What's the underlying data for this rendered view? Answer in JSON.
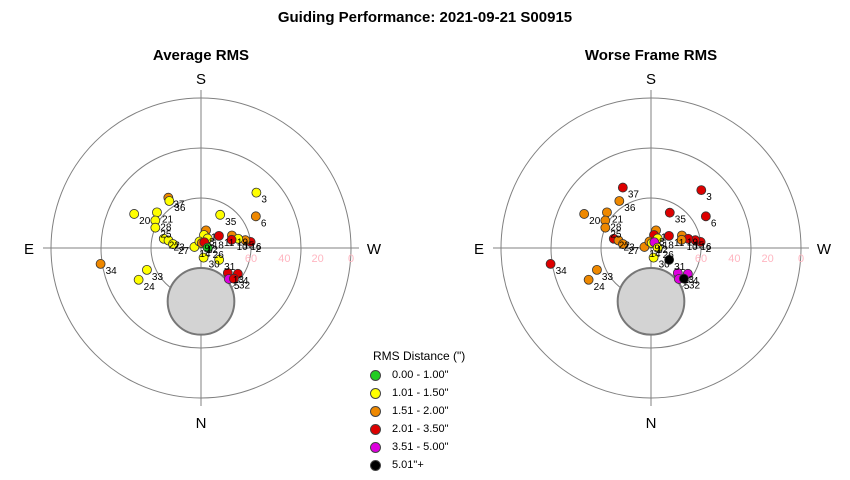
{
  "title": "Guiding Performance: 2021-09-21 S00915",
  "cardinals": {
    "top": "S",
    "bottom": "N",
    "left": "E",
    "right": "W"
  },
  "ring_labels": [
    "60",
    "40",
    "20",
    "0"
  ],
  "colors": {
    "c0": "#22cc22",
    "c1": "#ffff00",
    "c2": "#ee8800",
    "c3": "#dd0000",
    "c4": "#dd00dd",
    "c5": "#000000",
    "moon": "#d3d3d3",
    "grid": "#808080"
  },
  "legend": {
    "title": "RMS Distance (\")",
    "items": [
      {
        "label": "0.00 - 1.00\"",
        "color": "c0"
      },
      {
        "label": "1.01 - 1.50\"",
        "color": "c1"
      },
      {
        "label": "1.51 - 2.00\"",
        "color": "c2"
      },
      {
        "label": "2.01 - 3.50\"",
        "color": "c3"
      },
      {
        "label": "3.51 - 5.00\"",
        "color": "c4"
      },
      {
        "label": "5.01\"+",
        "color": "c5"
      }
    ]
  },
  "chart_data": [
    {
      "type": "scatter",
      "title": "Average RMS",
      "radial_axis": "altitude",
      "radial_range": [
        90,
        0
      ],
      "ring_ticks": [
        60,
        40,
        20,
        0
      ],
      "moon": {
        "azimuth": 0,
        "altitude": 58,
        "radius_deg": 20
      },
      "points": [
        {
          "label": "37",
          "az": 147,
          "alt": 54,
          "color": "c2"
        },
        {
          "label": "36",
          "az": 146,
          "alt": 56,
          "color": "c1"
        },
        {
          "label": "35",
          "az": 210,
          "alt": 67,
          "color": "c1"
        },
        {
          "label": "3",
          "az": 225,
          "alt": 43,
          "color": "c1"
        },
        {
          "label": "21",
          "az": 129,
          "alt": 56,
          "color": "c1"
        },
        {
          "label": "20",
          "az": 117,
          "alt": 45,
          "color": "c1"
        },
        {
          "label": "28",
          "az": 121,
          "alt": 58,
          "color": "c1"
        },
        {
          "label": "25",
          "az": 114,
          "alt": 60,
          "color": "c1"
        },
        {
          "label": "1",
          "az": 196,
          "alt": 79,
          "color": "c2"
        },
        {
          "label": "6",
          "az": 240,
          "alt": 52,
          "color": "c2"
        },
        {
          "label": "8",
          "az": 193,
          "alt": 82,
          "color": "c1"
        },
        {
          "label": "18",
          "az": 215,
          "alt": 83,
          "color": "c1"
        },
        {
          "label": "22",
          "az": 104,
          "alt": 67,
          "color": "c1"
        },
        {
          "label": "2",
          "az": 263,
          "alt": 60,
          "color": "c3"
        },
        {
          "label": "16",
          "az": 260,
          "alt": 63,
          "color": "c2"
        },
        {
          "label": "23",
          "az": 103,
          "alt": 70,
          "color": "c1"
        },
        {
          "label": "27",
          "az": 98,
          "alt": 73,
          "color": "c1"
        },
        {
          "label": "14",
          "az": 99,
          "alt": 86,
          "color": "c1"
        },
        {
          "label": "9",
          "az": 166,
          "alt": 86,
          "color": "c1"
        },
        {
          "label": "12",
          "az": 189,
          "alt": 87,
          "color": "c2"
        },
        {
          "label": "7",
          "az": 210,
          "alt": 86,
          "color": "c3"
        },
        {
          "label": "11",
          "az": 236,
          "alt": 77,
          "color": "c3"
        },
        {
          "label": "19",
          "az": 248,
          "alt": 70,
          "color": "c2"
        },
        {
          "label": "15",
          "az": 256,
          "alt": 67,
          "color": "c1"
        },
        {
          "label": "10",
          "az": 255,
          "alt": 71,
          "color": "c3"
        },
        {
          "label": "26",
          "az": 268,
          "alt": 86,
          "color": "c0"
        },
        {
          "label": "30",
          "az": 345,
          "alt": 84,
          "color": "c1"
        },
        {
          "label": "31",
          "az": 303,
          "alt": 77,
          "color": "c1"
        },
        {
          "label": "13",
          "az": 313,
          "alt": 68,
          "color": "c3"
        },
        {
          "label": "4",
          "az": 305,
          "alt": 63,
          "color": "c3"
        },
        {
          "label": "5",
          "az": 318,
          "alt": 65,
          "color": "c4"
        },
        {
          "label": "32",
          "az": 313,
          "alt": 63,
          "color": "c3"
        },
        {
          "label": "34",
          "az": 81,
          "alt": 29,
          "color": "c2"
        },
        {
          "label": "33",
          "az": 68,
          "alt": 55,
          "color": "c1"
        },
        {
          "label": "24",
          "az": 63,
          "alt": 48,
          "color": "c1"
        }
      ]
    },
    {
      "type": "scatter",
      "title": "Worse Frame RMS",
      "radial_axis": "altitude",
      "radial_range": [
        90,
        0
      ],
      "ring_ticks": [
        60,
        40,
        20,
        0
      ],
      "moon": {
        "azimuth": 0,
        "altitude": 58,
        "radius_deg": 20
      },
      "points": [
        {
          "label": "37",
          "az": 155,
          "alt": 50,
          "color": "c3"
        },
        {
          "label": "36",
          "az": 146,
          "alt": 56,
          "color": "c2"
        },
        {
          "label": "35",
          "az": 208,
          "alt": 66,
          "color": "c3"
        },
        {
          "label": "3",
          "az": 221,
          "alt": 44,
          "color": "c3"
        },
        {
          "label": "21",
          "az": 129,
          "alt": 56,
          "color": "c2"
        },
        {
          "label": "20",
          "az": 117,
          "alt": 45,
          "color": "c2"
        },
        {
          "label": "28",
          "az": 121,
          "alt": 58,
          "color": "c2"
        },
        {
          "label": "25",
          "az": 114,
          "alt": 60,
          "color": "c2"
        },
        {
          "label": "1",
          "az": 196,
          "alt": 79,
          "color": "c2"
        },
        {
          "label": "6",
          "az": 240,
          "alt": 52,
          "color": "c3"
        },
        {
          "label": "8",
          "az": 193,
          "alt": 82,
          "color": "c3"
        },
        {
          "label": "18",
          "az": 215,
          "alt": 83,
          "color": "c1"
        },
        {
          "label": "22",
          "az": 104,
          "alt": 67,
          "color": "c3"
        },
        {
          "label": "2",
          "az": 263,
          "alt": 60,
          "color": "c3"
        },
        {
          "label": "16",
          "az": 260,
          "alt": 63,
          "color": "c3"
        },
        {
          "label": "23",
          "az": 103,
          "alt": 70,
          "color": "c2"
        },
        {
          "label": "27",
          "az": 98,
          "alt": 73,
          "color": "c2"
        },
        {
          "label": "14",
          "az": 99,
          "alt": 86,
          "color": "c2"
        },
        {
          "label": "9",
          "az": 166,
          "alt": 86,
          "color": "c2"
        },
        {
          "label": "12",
          "az": 189,
          "alt": 87,
          "color": "c1"
        },
        {
          "label": "7",
          "az": 210,
          "alt": 86,
          "color": "c4"
        },
        {
          "label": "11",
          "az": 236,
          "alt": 77,
          "color": "c3"
        },
        {
          "label": "19",
          "az": 248,
          "alt": 70,
          "color": "c2"
        },
        {
          "label": "15",
          "az": 256,
          "alt": 67,
          "color": "c3"
        },
        {
          "label": "10",
          "az": 255,
          "alt": 71,
          "color": "c2"
        },
        {
          "label": "26",
          "az": 268,
          "alt": 86,
          "color": "c1"
        },
        {
          "label": "30",
          "az": 345,
          "alt": 84,
          "color": "c1"
        },
        {
          "label": "31",
          "az": 303,
          "alt": 77,
          "color": "c5"
        },
        {
          "label": "13",
          "az": 313,
          "alt": 68,
          "color": "c4"
        },
        {
          "label": "4",
          "az": 305,
          "alt": 63,
          "color": "c4"
        },
        {
          "label": "5",
          "az": 318,
          "alt": 65,
          "color": "c4"
        },
        {
          "label": "32",
          "az": 313,
          "alt": 63,
          "color": "c5"
        },
        {
          "label": "34",
          "az": 81,
          "alt": 29,
          "color": "c3"
        },
        {
          "label": "33",
          "az": 68,
          "alt": 55,
          "color": "c2"
        },
        {
          "label": "24",
          "az": 63,
          "alt": 48,
          "color": "c2"
        }
      ]
    }
  ]
}
